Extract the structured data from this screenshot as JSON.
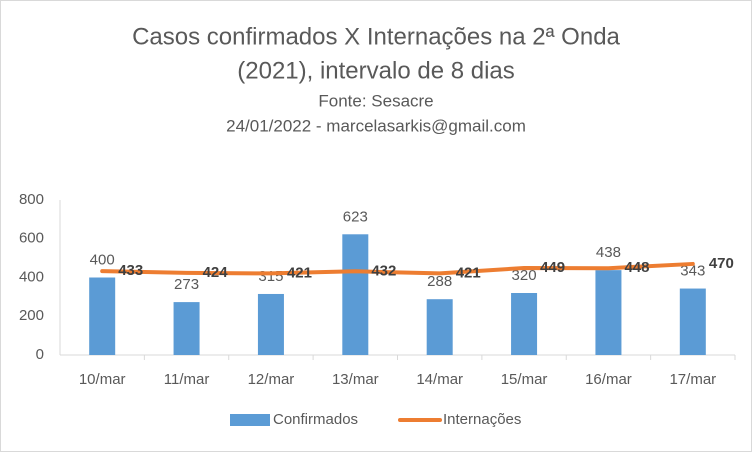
{
  "chart_data": {
    "type": "combo",
    "title": [
      "Casos confirmados X Internações na 2ª Onda",
      "(2021), intervalo de 8 dias"
    ],
    "subtitle": [
      "Fonte: Sesacre",
      "24/01/2022 - marcelasarkis@gmail.com"
    ],
    "categories": [
      "10/mar",
      "11/mar",
      "12/mar",
      "13/mar",
      "14/mar",
      "15/mar",
      "16/mar",
      "17/mar"
    ],
    "series": [
      {
        "name": "Confirmados",
        "type": "bar",
        "color": "#5b9bd5",
        "values": [
          400,
          273,
          315,
          623,
          288,
          320,
          438,
          343
        ]
      },
      {
        "name": "Internações",
        "type": "line",
        "color": "#ed7d31",
        "values": [
          433,
          424,
          421,
          432,
          421,
          449,
          448,
          470
        ]
      }
    ],
    "ylim": [
      0,
      800
    ],
    "yticks": [
      0,
      200,
      400,
      600,
      800
    ],
    "grid": false,
    "legend": "bottom"
  }
}
